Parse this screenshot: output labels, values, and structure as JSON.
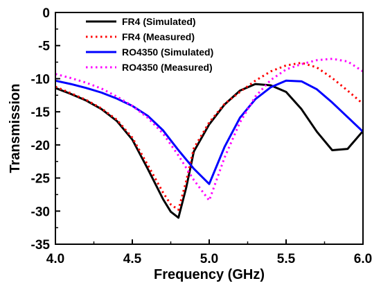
{
  "chart_data": {
    "type": "line",
    "title": "",
    "xlabel": "Frequency (GHz)",
    "ylabel": "Transmission",
    "xlim": [
      4.0,
      6.0
    ],
    "ylim": [
      -35,
      0
    ],
    "x_ticks": [
      "4.0",
      "4.5",
      "5.0",
      "5.5",
      "6.0"
    ],
    "y_ticks": [
      "0",
      "-5",
      "-10",
      "-15",
      "-20",
      "-25",
      "-30",
      "-35"
    ],
    "grid": false,
    "legend_position": "top-center",
    "series": [
      {
        "name": "FR4 (Simulated)",
        "color": "#000000",
        "style": "solid",
        "x": [
          4.0,
          4.1,
          4.2,
          4.3,
          4.4,
          4.5,
          4.6,
          4.7,
          4.75,
          4.8,
          4.85,
          4.9,
          5.0,
          5.1,
          5.2,
          5.3,
          5.4,
          5.5,
          5.6,
          5.7,
          5.8,
          5.9,
          6.0
        ],
        "y": [
          -11.4,
          -12.3,
          -13.3,
          -14.6,
          -16.4,
          -19.2,
          -23.6,
          -28.2,
          -30.1,
          -31.0,
          -26.5,
          -21.0,
          -16.9,
          -13.9,
          -11.8,
          -10.8,
          -11.0,
          -12.0,
          -14.6,
          -18.0,
          -20.8,
          -20.6,
          -17.9
        ]
      },
      {
        "name": "FR4 (Measured)",
        "color": "#ff0000",
        "style": "dotted",
        "x": [
          4.0,
          4.1,
          4.2,
          4.3,
          4.4,
          4.5,
          4.6,
          4.7,
          4.75,
          4.8,
          4.85,
          4.9,
          5.0,
          5.1,
          5.2,
          5.3,
          5.4,
          5.5,
          5.6,
          5.7,
          5.8,
          5.9,
          6.0
        ],
        "y": [
          -11.2,
          -12.2,
          -13.2,
          -14.5,
          -16.2,
          -18.9,
          -23.0,
          -27.2,
          -29.0,
          -29.8,
          -25.5,
          -20.5,
          -16.6,
          -13.8,
          -12.0,
          -10.3,
          -8.9,
          -8.0,
          -7.6,
          -8.3,
          -9.9,
          -11.8,
          -13.8
        ]
      },
      {
        "name": "RO4350 (Simulated)",
        "color": "#0000ff",
        "style": "solid",
        "x": [
          4.0,
          4.1,
          4.2,
          4.3,
          4.4,
          4.5,
          4.6,
          4.7,
          4.8,
          4.9,
          5.0,
          5.1,
          5.2,
          5.3,
          5.4,
          5.5,
          5.6,
          5.7,
          5.8,
          5.9,
          6.0
        ],
        "y": [
          -10.3,
          -10.8,
          -11.4,
          -12.1,
          -13.0,
          -14.1,
          -15.6,
          -17.8,
          -20.8,
          -23.6,
          -25.9,
          -20.3,
          -15.9,
          -13.1,
          -11.3,
          -10.3,
          -10.4,
          -11.6,
          -13.6,
          -15.8,
          -18.0
        ]
      },
      {
        "name": "RO4350 (Measured)",
        "color": "#ff00ff",
        "style": "dotted",
        "x": [
          4.0,
          4.1,
          4.2,
          4.3,
          4.4,
          4.5,
          4.6,
          4.7,
          4.8,
          4.9,
          5.0,
          5.1,
          5.2,
          5.3,
          5.4,
          5.5,
          5.6,
          5.7,
          5.8,
          5.9,
          6.0
        ],
        "y": [
          -9.3,
          -9.9,
          -10.6,
          -11.5,
          -12.7,
          -14.1,
          -15.9,
          -18.3,
          -21.6,
          -25.3,
          -28.4,
          -21.9,
          -16.6,
          -12.7,
          -10.2,
          -8.6,
          -7.8,
          -7.2,
          -7.0,
          -7.4,
          -8.9
        ]
      }
    ]
  }
}
